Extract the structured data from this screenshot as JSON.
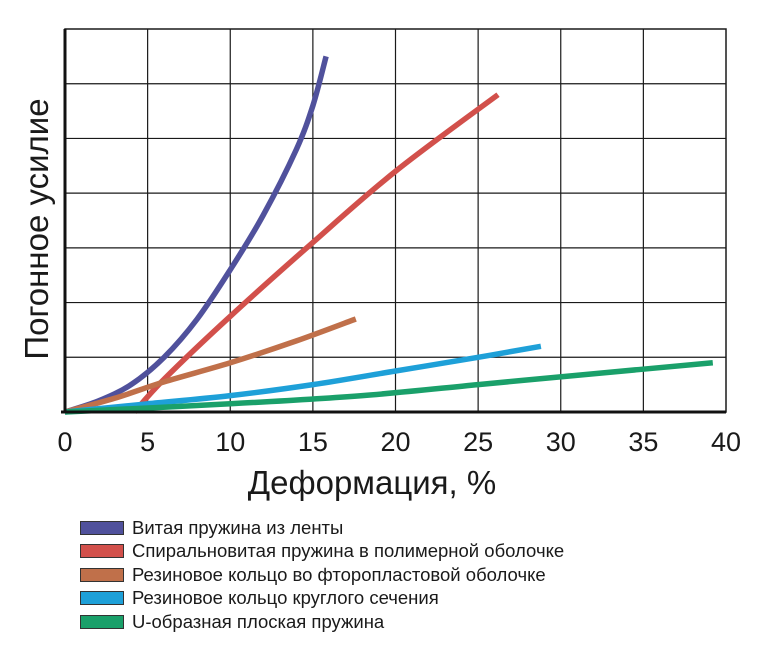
{
  "chart_data": {
    "type": "line",
    "title": "",
    "xlabel": "Деформация, %",
    "ylabel": "Погонное усилие",
    "xlim": [
      0,
      40
    ],
    "ylim": [
      0,
      7
    ],
    "x_ticks": [
      "0",
      "5",
      "10",
      "15",
      "20",
      "25",
      "30",
      "35",
      "40"
    ],
    "y_tick_labels": false,
    "grid": true,
    "legend_position": "bottom",
    "series": [
      {
        "name": "Витая пружина из ленты",
        "color": "#50519c",
        "points": [
          [
            0,
            0
          ],
          [
            2,
            0.2
          ],
          [
            4,
            0.5
          ],
          [
            6,
            1.0
          ],
          [
            8,
            1.7
          ],
          [
            10,
            2.6
          ],
          [
            12,
            3.6
          ],
          [
            14,
            4.8
          ],
          [
            15,
            5.6
          ],
          [
            15.8,
            6.5
          ]
        ]
      },
      {
        "name": "Спиральновитая пружина в полимерной оболочке",
        "color": "#d2504b",
        "points": [
          [
            4.2,
            0
          ],
          [
            6,
            0.6
          ],
          [
            10,
            1.75
          ],
          [
            15,
            3.1
          ],
          [
            20,
            4.4
          ],
          [
            26.2,
            5.8
          ]
        ]
      },
      {
        "name": "Резиновое кольцо во фторопластовой оболочке",
        "color": "#c0704a",
        "points": [
          [
            0,
            0
          ],
          [
            3,
            0.25
          ],
          [
            6,
            0.55
          ],
          [
            10,
            0.9
          ],
          [
            14,
            1.3
          ],
          [
            17.6,
            1.7
          ]
        ]
      },
      {
        "name": "Резиновое кольцо круглого сечения",
        "color": "#1ea0d8",
        "points": [
          [
            0,
            0
          ],
          [
            5,
            0.15
          ],
          [
            10,
            0.3
          ],
          [
            15,
            0.5
          ],
          [
            20,
            0.75
          ],
          [
            25,
            1.0
          ],
          [
            28.8,
            1.2
          ]
        ]
      },
      {
        "name": "U-образная плоская пружина",
        "color": "#1aa06a",
        "points": [
          [
            0,
            0
          ],
          [
            10,
            0.15
          ],
          [
            18,
            0.3
          ],
          [
            25,
            0.5
          ],
          [
            32,
            0.7
          ],
          [
            39.2,
            0.9
          ]
        ]
      }
    ]
  }
}
